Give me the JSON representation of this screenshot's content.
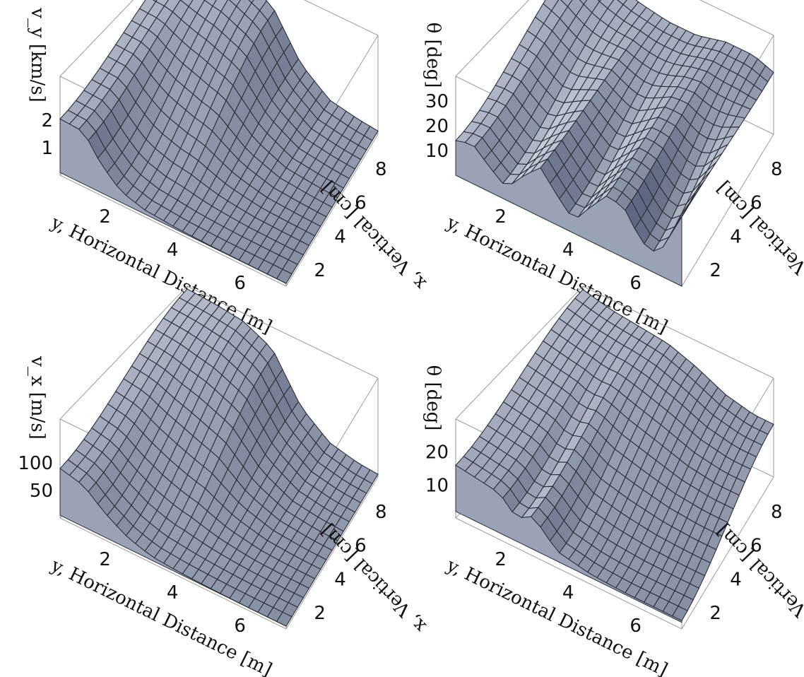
{
  "figure_colors": {
    "surface_light": "#dfe3ee",
    "surface_dark": "#5e6880",
    "mesh": "#2a2f3a",
    "box": "#9a9a9a"
  },
  "chart_data": [
    {
      "type": "surface3d",
      "zlabel": "v_y [km/s]",
      "xlabel": "y, Horizontal Distance [m]",
      "ylabel": "x, Vertical [cm]",
      "x_ticks": [
        "2",
        "4",
        "6"
      ],
      "y_ticks": [
        "2",
        "4",
        "6",
        "8"
      ],
      "z_ticks": [
        "1",
        "2"
      ],
      "xlim": [
        0.5,
        7.2
      ],
      "ylim": [
        0.5,
        9.5
      ],
      "zlim": [
        0,
        3.6
      ],
      "base_level": 0.1,
      "profile_y": [
        0.5,
        1.2,
        1.7,
        2.3,
        3.0,
        4.0,
        5.0,
        6.0,
        7.2
      ],
      "profile_z": [
        2.05,
        2.0,
        1.15,
        0.5,
        0.25,
        0.15,
        0.12,
        0.11,
        0.1
      ],
      "back_y": [
        0.5,
        1.5,
        2.5,
        3.5,
        4.5,
        5.5,
        6.5,
        7.2
      ],
      "back_z": [
        3.5,
        3.45,
        3.3,
        2.8,
        1.2,
        0.4,
        0.2,
        0.12
      ]
    },
    {
      "type": "surface3d",
      "zlabel": "θ [deg]",
      "xlabel": "y, Horizontal Distance [m]",
      "ylabel": "x, Vertical [cm]",
      "x_ticks": [
        "2",
        "4",
        "6"
      ],
      "y_ticks": [
        "2",
        "4",
        "6",
        "8"
      ],
      "z_ticks": [
        "10",
        "20",
        "30"
      ],
      "xlim": [
        0.5,
        7.2
      ],
      "ylim": [
        0.5,
        9.5
      ],
      "zlim": [
        0,
        40
      ],
      "base_level": 0,
      "profile_y": [
        0.5,
        1.0,
        1.5,
        2.0,
        2.5,
        3.0,
        3.5,
        4.0,
        4.5,
        5.0,
        5.5,
        6.0,
        6.5,
        7.2
      ],
      "profile_z": [
        14,
        16,
        10,
        5,
        13,
        20,
        12,
        5,
        14,
        22,
        20,
        10,
        8,
        28
      ],
      "back_y": [
        0.5,
        1.5,
        2.5,
        3.5,
        4.5,
        5.5,
        6.5,
        7.2
      ],
      "back_z": [
        38,
        31,
        27,
        25,
        25,
        28,
        28,
        25
      ]
    },
    {
      "type": "surface3d",
      "zlabel": "v_x [m/s]",
      "xlabel": "y, Horizontal Distance [m]",
      "ylabel": "x, Vertical [cm]",
      "x_ticks": [
        "2",
        "4",
        "6"
      ],
      "y_ticks": [
        "2",
        "4",
        "6",
        "8"
      ],
      "z_ticks": [
        "50",
        "100"
      ],
      "xlim": [
        0.5,
        7.2
      ],
      "ylim": [
        0.5,
        9.5
      ],
      "zlim": [
        0,
        180
      ],
      "base_level": 5,
      "profile_y": [
        0.5,
        1.2,
        1.8,
        2.5,
        3.2,
        4.0,
        5.0,
        6.0,
        7.2
      ],
      "profile_z": [
        90,
        80,
        50,
        25,
        12,
        8,
        6,
        5,
        5
      ],
      "back_y": [
        0.5,
        1.5,
        2.5,
        3.5,
        4.5,
        5.5,
        6.5,
        7.2
      ],
      "back_z": [
        175,
        172,
        165,
        140,
        60,
        20,
        8,
        5
      ]
    },
    {
      "type": "surface3d",
      "zlabel": "θ [deg]",
      "xlabel": "y, Horizontal Distance [m]",
      "ylabel": "x, Vertical [cm]",
      "x_ticks": [
        "2",
        "4",
        "6"
      ],
      "y_ticks": [
        "2",
        "4",
        "6",
        "8"
      ],
      "z_ticks": [
        "10",
        "20"
      ],
      "xlim": [
        0.5,
        7.2
      ],
      "ylim": [
        0.5,
        9.5
      ],
      "zlim": [
        0,
        30
      ],
      "base_level": 2,
      "profile_y": [
        0.5,
        1.2,
        1.8,
        2.3,
        2.8,
        3.5,
        4.5,
        5.5,
        7.2
      ],
      "profile_z": [
        16,
        15,
        14,
        9,
        12,
        5,
        3,
        2.5,
        2.5
      ],
      "back_y": [
        0.5,
        1.5,
        2.5,
        3.5,
        4.5,
        5.5,
        6.5,
        7.2
      ],
      "back_z": [
        29,
        27,
        26,
        25,
        22,
        18,
        16,
        16
      ]
    }
  ]
}
